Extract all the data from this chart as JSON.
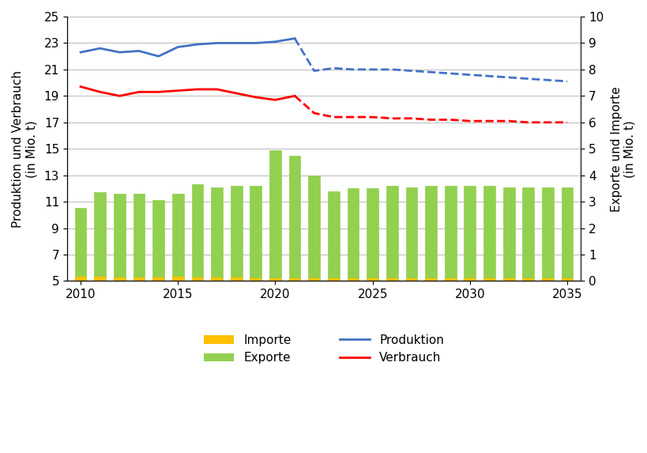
{
  "years": [
    2010,
    2011,
    2012,
    2013,
    2014,
    2015,
    2016,
    2017,
    2018,
    2019,
    2020,
    2021,
    2022,
    2023,
    2024,
    2025,
    2026,
    2027,
    2028,
    2029,
    2030,
    2031,
    2032,
    2033,
    2034,
    2035
  ],
  "exporte": [
    10.5,
    11.7,
    11.6,
    11.6,
    11.1,
    11.6,
    12.3,
    12.1,
    12.2,
    12.2,
    14.9,
    14.5,
    13.0,
    11.8,
    12.0,
    12.0,
    12.2,
    12.1,
    12.2,
    12.2,
    12.2,
    12.2,
    12.1,
    12.1,
    12.1,
    12.1
  ],
  "importe": [
    0.3,
    0.3,
    0.25,
    0.25,
    0.25,
    0.3,
    0.25,
    0.25,
    0.25,
    0.2,
    0.2,
    0.2,
    0.2,
    0.2,
    0.2,
    0.2,
    0.2,
    0.2,
    0.2,
    0.2,
    0.2,
    0.2,
    0.2,
    0.2,
    0.2,
    0.2
  ],
  "produktion_solid": [
    22.3,
    22.6,
    22.3,
    22.4,
    22.0,
    22.7,
    22.9,
    23.0,
    23.0,
    23.0,
    23.1,
    23.35,
    null,
    null,
    null,
    null,
    null,
    null,
    null,
    null,
    null,
    null,
    null,
    null,
    null,
    null
  ],
  "produktion_dashed": [
    null,
    null,
    null,
    null,
    null,
    null,
    null,
    null,
    null,
    null,
    null,
    23.35,
    20.9,
    21.1,
    21.0,
    21.0,
    21.0,
    20.9,
    20.8,
    20.7,
    20.6,
    20.5,
    20.4,
    20.3,
    20.2,
    20.1
  ],
  "verbrauch_solid": [
    19.7,
    19.3,
    19.0,
    19.3,
    19.3,
    19.4,
    19.5,
    19.5,
    19.2,
    18.9,
    18.7,
    19.0,
    null,
    null,
    null,
    null,
    null,
    null,
    null,
    null,
    null,
    null,
    null,
    null,
    null,
    null
  ],
  "verbrauch_dashed": [
    null,
    null,
    null,
    null,
    null,
    null,
    null,
    null,
    null,
    null,
    null,
    19.0,
    17.7,
    17.4,
    17.4,
    17.4,
    17.3,
    17.3,
    17.2,
    17.2,
    17.1,
    17.1,
    17.1,
    17.0,
    17.0,
    17.0
  ],
  "produktion_color": "#4472C4",
  "verbrauch_color": "#FF0000",
  "exporte_color": "#92D050",
  "importe_color": "#FFC000",
  "ylabel_left": "Produktion und Verbrauch\n(in Mio. t)",
  "ylabel_right": "Exporte und Importe\n(in Mio. t)",
  "ylim_left": [
    5,
    25
  ],
  "ylim_right": [
    0,
    10
  ],
  "yticks_left": [
    5,
    7,
    9,
    11,
    13,
    15,
    17,
    19,
    21,
    23,
    25
  ],
  "yticks_right": [
    0,
    1,
    2,
    3,
    4,
    5,
    6,
    7,
    8,
    9,
    10
  ],
  "xlim": [
    2009.3,
    2035.7
  ],
  "xticks": [
    2010,
    2015,
    2020,
    2025,
    2030,
    2035
  ],
  "bg_color": "#FFFFFF",
  "grid_color": "#C0C0C0",
  "bar_bottom": 5,
  "bar_width": 0.6
}
